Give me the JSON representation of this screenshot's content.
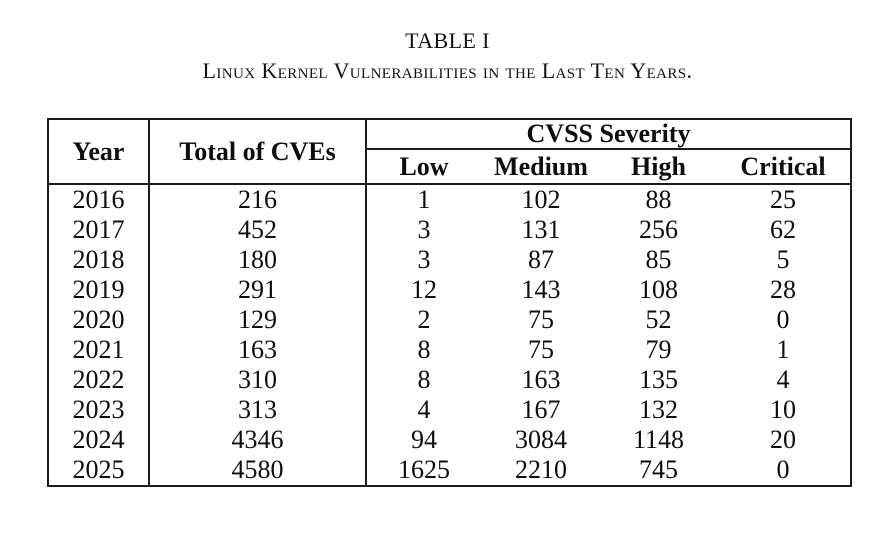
{
  "caption": {
    "label": "TABLE I",
    "title": "Linux Kernel Vulnerabilities in the Last Ten Years."
  },
  "table": {
    "col_year": "Year",
    "col_total": "Total of CVEs",
    "group_header": "CVSS Severity",
    "severity_cols": [
      "Low",
      "Medium",
      "High",
      "Critical"
    ],
    "rows": [
      [
        "2016",
        "216",
        "1",
        "102",
        "88",
        "25"
      ],
      [
        "2017",
        "452",
        "3",
        "131",
        "256",
        "62"
      ],
      [
        "2018",
        "180",
        "3",
        "87",
        "85",
        "5"
      ],
      [
        "2019",
        "291",
        "12",
        "143",
        "108",
        "28"
      ],
      [
        "2020",
        "129",
        "2",
        "75",
        "52",
        "0"
      ],
      [
        "2021",
        "163",
        "8",
        "75",
        "79",
        "1"
      ],
      [
        "2022",
        "310",
        "8",
        "163",
        "135",
        "4"
      ],
      [
        "2023",
        "313",
        "4",
        "167",
        "132",
        "10"
      ],
      [
        "2024",
        "4346",
        "94",
        "3084",
        "1148",
        "20"
      ],
      [
        "2025",
        "4580",
        "1625",
        "2210",
        "745",
        "0"
      ]
    ]
  }
}
